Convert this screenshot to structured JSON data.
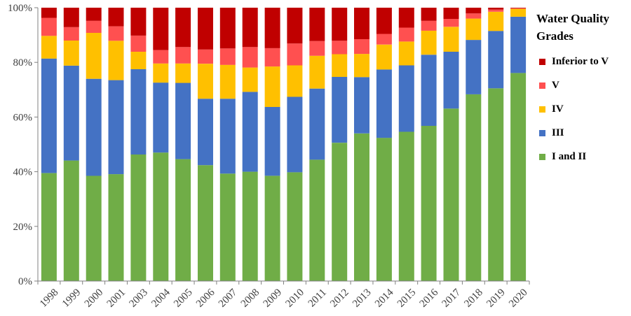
{
  "chart_data": {
    "type": "bar",
    "stacked": true,
    "title": "",
    "xlabel": "",
    "ylabel": "",
    "ylim": [
      0,
      100
    ],
    "yticks": [
      "0%",
      "20%",
      "40%",
      "60%",
      "80%",
      "100%"
    ],
    "grid": false,
    "legend_position": "right",
    "legend_title": "Water Quality Grades",
    "categories": [
      "1998",
      "1999",
      "2000",
      "2001",
      "2003",
      "2004",
      "2005",
      "2006",
      "2007",
      "2008",
      "2009",
      "2010",
      "2011",
      "2012",
      "2013",
      "2014",
      "2015",
      "2016",
      "2017",
      "2018",
      "2019",
      "2020"
    ],
    "series": [
      {
        "name": "I and II",
        "color": "#70AD47",
        "values": [
          39.5,
          44.1,
          38.5,
          39.1,
          46.3,
          47.0,
          44.6,
          42.4,
          39.3,
          40.0,
          38.5,
          39.8,
          44.4,
          50.6,
          54.0,
          52.4,
          54.6,
          56.8,
          63.1,
          68.3,
          70.5,
          76.1
        ]
      },
      {
        "name": "III",
        "color": "#4472C4",
        "values": [
          41.9,
          34.7,
          35.5,
          34.4,
          31.2,
          25.6,
          27.9,
          24.3,
          27.4,
          29.2,
          25.2,
          27.6,
          26.0,
          24.1,
          20.6,
          25.0,
          24.3,
          26.0,
          20.8,
          19.9,
          21.0,
          20.6
        ]
      },
      {
        "name": "IV",
        "color": "#FFC000",
        "values": [
          8.3,
          9.2,
          16.8,
          14.4,
          6.4,
          7.0,
          7.1,
          12.8,
          12.4,
          8.9,
          14.8,
          11.5,
          12.0,
          8.3,
          8.5,
          9.1,
          8.7,
          8.8,
          9.1,
          7.8,
          7.0,
          2.9
        ]
      },
      {
        "name": "V",
        "color": "#FF5050",
        "values": [
          6.6,
          4.9,
          4.4,
          5.3,
          5.9,
          4.9,
          6.0,
          5.2,
          6.0,
          7.5,
          6.7,
          8.0,
          5.4,
          4.9,
          5.4,
          3.9,
          5.1,
          3.6,
          2.9,
          1.9,
          0.8,
          0.2
        ]
      },
      {
        "name": "Inferior to  V",
        "color": "#C00000",
        "values": [
          3.7,
          7.1,
          4.8,
          6.8,
          10.2,
          15.5,
          14.4,
          15.3,
          14.9,
          14.4,
          14.8,
          13.1,
          12.2,
          12.1,
          11.5,
          9.6,
          7.3,
          4.8,
          4.1,
          2.1,
          0.7,
          0.2
        ]
      }
    ]
  }
}
